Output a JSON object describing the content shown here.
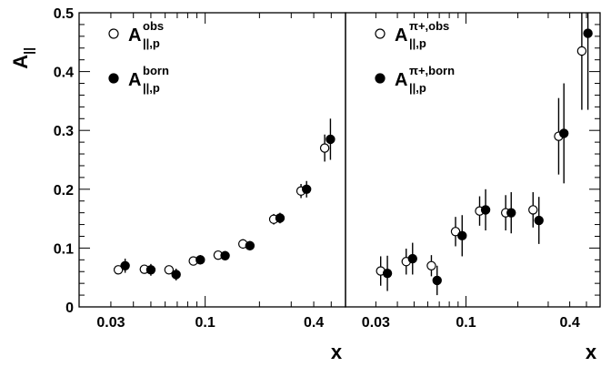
{
  "chart_data": [
    {
      "type": "scatter",
      "panel": "left",
      "xlabel": "x",
      "ylabel": "A",
      "ylabel_sub": "||",
      "xscale": "log",
      "xlim": [
        0.02,
        0.6
      ],
      "ylim": [
        0,
        0.5
      ],
      "x_ticks": [
        "0.03",
        "0.1",
        "0.4"
      ],
      "y_ticks": [
        "0",
        "0.1",
        "0.2",
        "0.3",
        "0.4",
        "0.5"
      ],
      "legend_placement": "top-left",
      "series": [
        {
          "label": {
            "main": "A",
            "sup": "obs",
            "sub": "||,p"
          },
          "marker": "open-circle",
          "points": [
            {
              "x": 0.033,
              "y": 0.063,
              "err": 0.007
            },
            {
              "x": 0.046,
              "y": 0.064,
              "err": 0.007
            },
            {
              "x": 0.063,
              "y": 0.063,
              "err": 0.007
            },
            {
              "x": 0.086,
              "y": 0.078,
              "err": 0.007
            },
            {
              "x": 0.118,
              "y": 0.088,
              "err": 0.007
            },
            {
              "x": 0.162,
              "y": 0.107,
              "err": 0.008
            },
            {
              "x": 0.24,
              "y": 0.149,
              "err": 0.009
            },
            {
              "x": 0.34,
              "y": 0.197,
              "err": 0.012
            },
            {
              "x": 0.46,
              "y": 0.27,
              "err": 0.023
            }
          ]
        },
        {
          "label": {
            "main": "A",
            "sup": "born",
            "sub": "||,p"
          },
          "marker": "filled-circle",
          "points": [
            {
              "x": 0.036,
              "y": 0.07,
              "err": 0.012
            },
            {
              "x": 0.05,
              "y": 0.063,
              "err": 0.01
            },
            {
              "x": 0.069,
              "y": 0.055,
              "err": 0.01
            },
            {
              "x": 0.094,
              "y": 0.08,
              "err": 0.008
            },
            {
              "x": 0.129,
              "y": 0.087,
              "err": 0.008
            },
            {
              "x": 0.177,
              "y": 0.104,
              "err": 0.008
            },
            {
              "x": 0.26,
              "y": 0.151,
              "err": 0.009
            },
            {
              "x": 0.365,
              "y": 0.2,
              "err": 0.014
            },
            {
              "x": 0.495,
              "y": 0.285,
              "err": 0.035
            }
          ]
        }
      ]
    },
    {
      "type": "scatter",
      "panel": "right",
      "xlabel": "x",
      "xscale": "log",
      "xlim": [
        0.02,
        0.6
      ],
      "ylim": [
        0,
        0.5
      ],
      "x_ticks": [
        "0.03",
        "0.1",
        "0.4"
      ],
      "legend_placement": "top-left",
      "series": [
        {
          "label": {
            "main": "A",
            "sup": "π+,obs",
            "sub": "||,p"
          },
          "marker": "open-circle",
          "points": [
            {
              "x": 0.032,
              "y": 0.061,
              "err": 0.025
            },
            {
              "x": 0.045,
              "y": 0.077,
              "err": 0.022
            },
            {
              "x": 0.063,
              "y": 0.07,
              "err": 0.018
            },
            {
              "x": 0.087,
              "y": 0.128,
              "err": 0.025
            },
            {
              "x": 0.12,
              "y": 0.163,
              "err": 0.025
            },
            {
              "x": 0.17,
              "y": 0.16,
              "err": 0.03
            },
            {
              "x": 0.245,
              "y": 0.165,
              "err": 0.03
            },
            {
              "x": 0.345,
              "y": 0.29,
              "err": 0.065
            },
            {
              "x": 0.47,
              "y": 0.435,
              "err": 0.1
            }
          ]
        },
        {
          "label": {
            "main": "A",
            "sup": "π+,born",
            "sub": "||,p"
          },
          "marker": "filled-circle",
          "points": [
            {
              "x": 0.035,
              "y": 0.057,
              "err": 0.03
            },
            {
              "x": 0.049,
              "y": 0.082,
              "err": 0.027
            },
            {
              "x": 0.068,
              "y": 0.045,
              "err": 0.025
            },
            {
              "x": 0.095,
              "y": 0.121,
              "err": 0.035
            },
            {
              "x": 0.13,
              "y": 0.165,
              "err": 0.035
            },
            {
              "x": 0.183,
              "y": 0.16,
              "err": 0.035
            },
            {
              "x": 0.265,
              "y": 0.147,
              "err": 0.04
            },
            {
              "x": 0.37,
              "y": 0.295,
              "err": 0.085
            },
            {
              "x": 0.51,
              "y": 0.465,
              "err": 0.13
            }
          ]
        }
      ]
    }
  ]
}
